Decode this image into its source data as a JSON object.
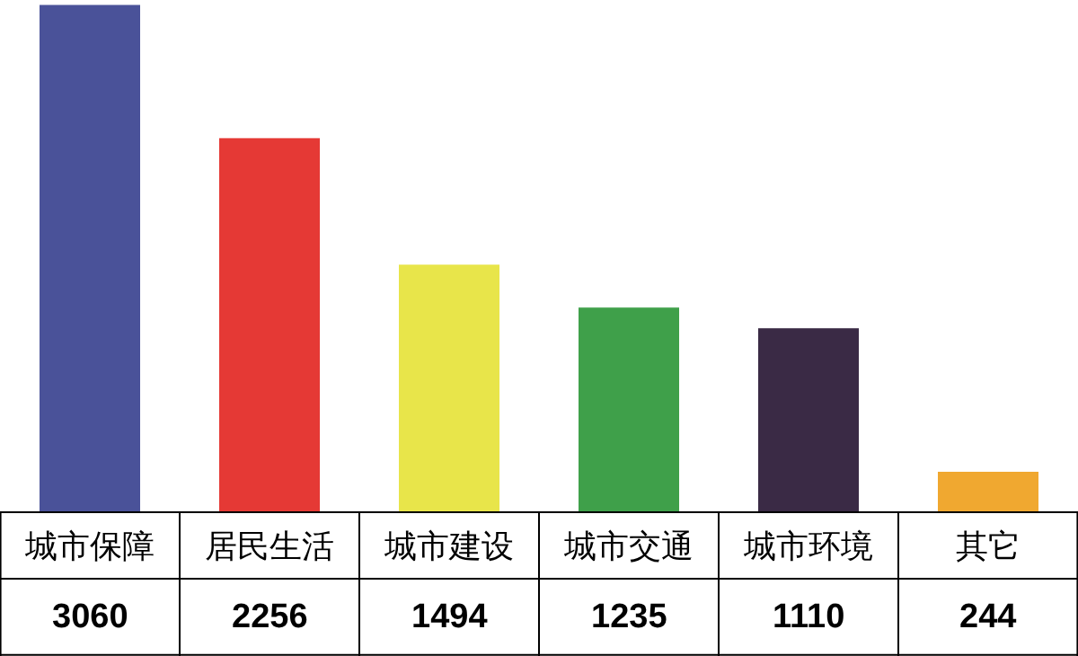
{
  "chart_data": {
    "type": "bar",
    "categories": [
      "城市保障",
      "居民生活",
      "城市建设",
      "城市交通",
      "城市环境",
      "其它"
    ],
    "values": [
      3060,
      2256,
      1494,
      1235,
      1110,
      244
    ],
    "colors": [
      "#4a5299",
      "#e53935",
      "#e8e54a",
      "#3fa04a",
      "#3a2a45",
      "#f0a830"
    ],
    "ylim": [
      0,
      3090
    ],
    "data_labels": true,
    "grid": false,
    "legend": false
  }
}
